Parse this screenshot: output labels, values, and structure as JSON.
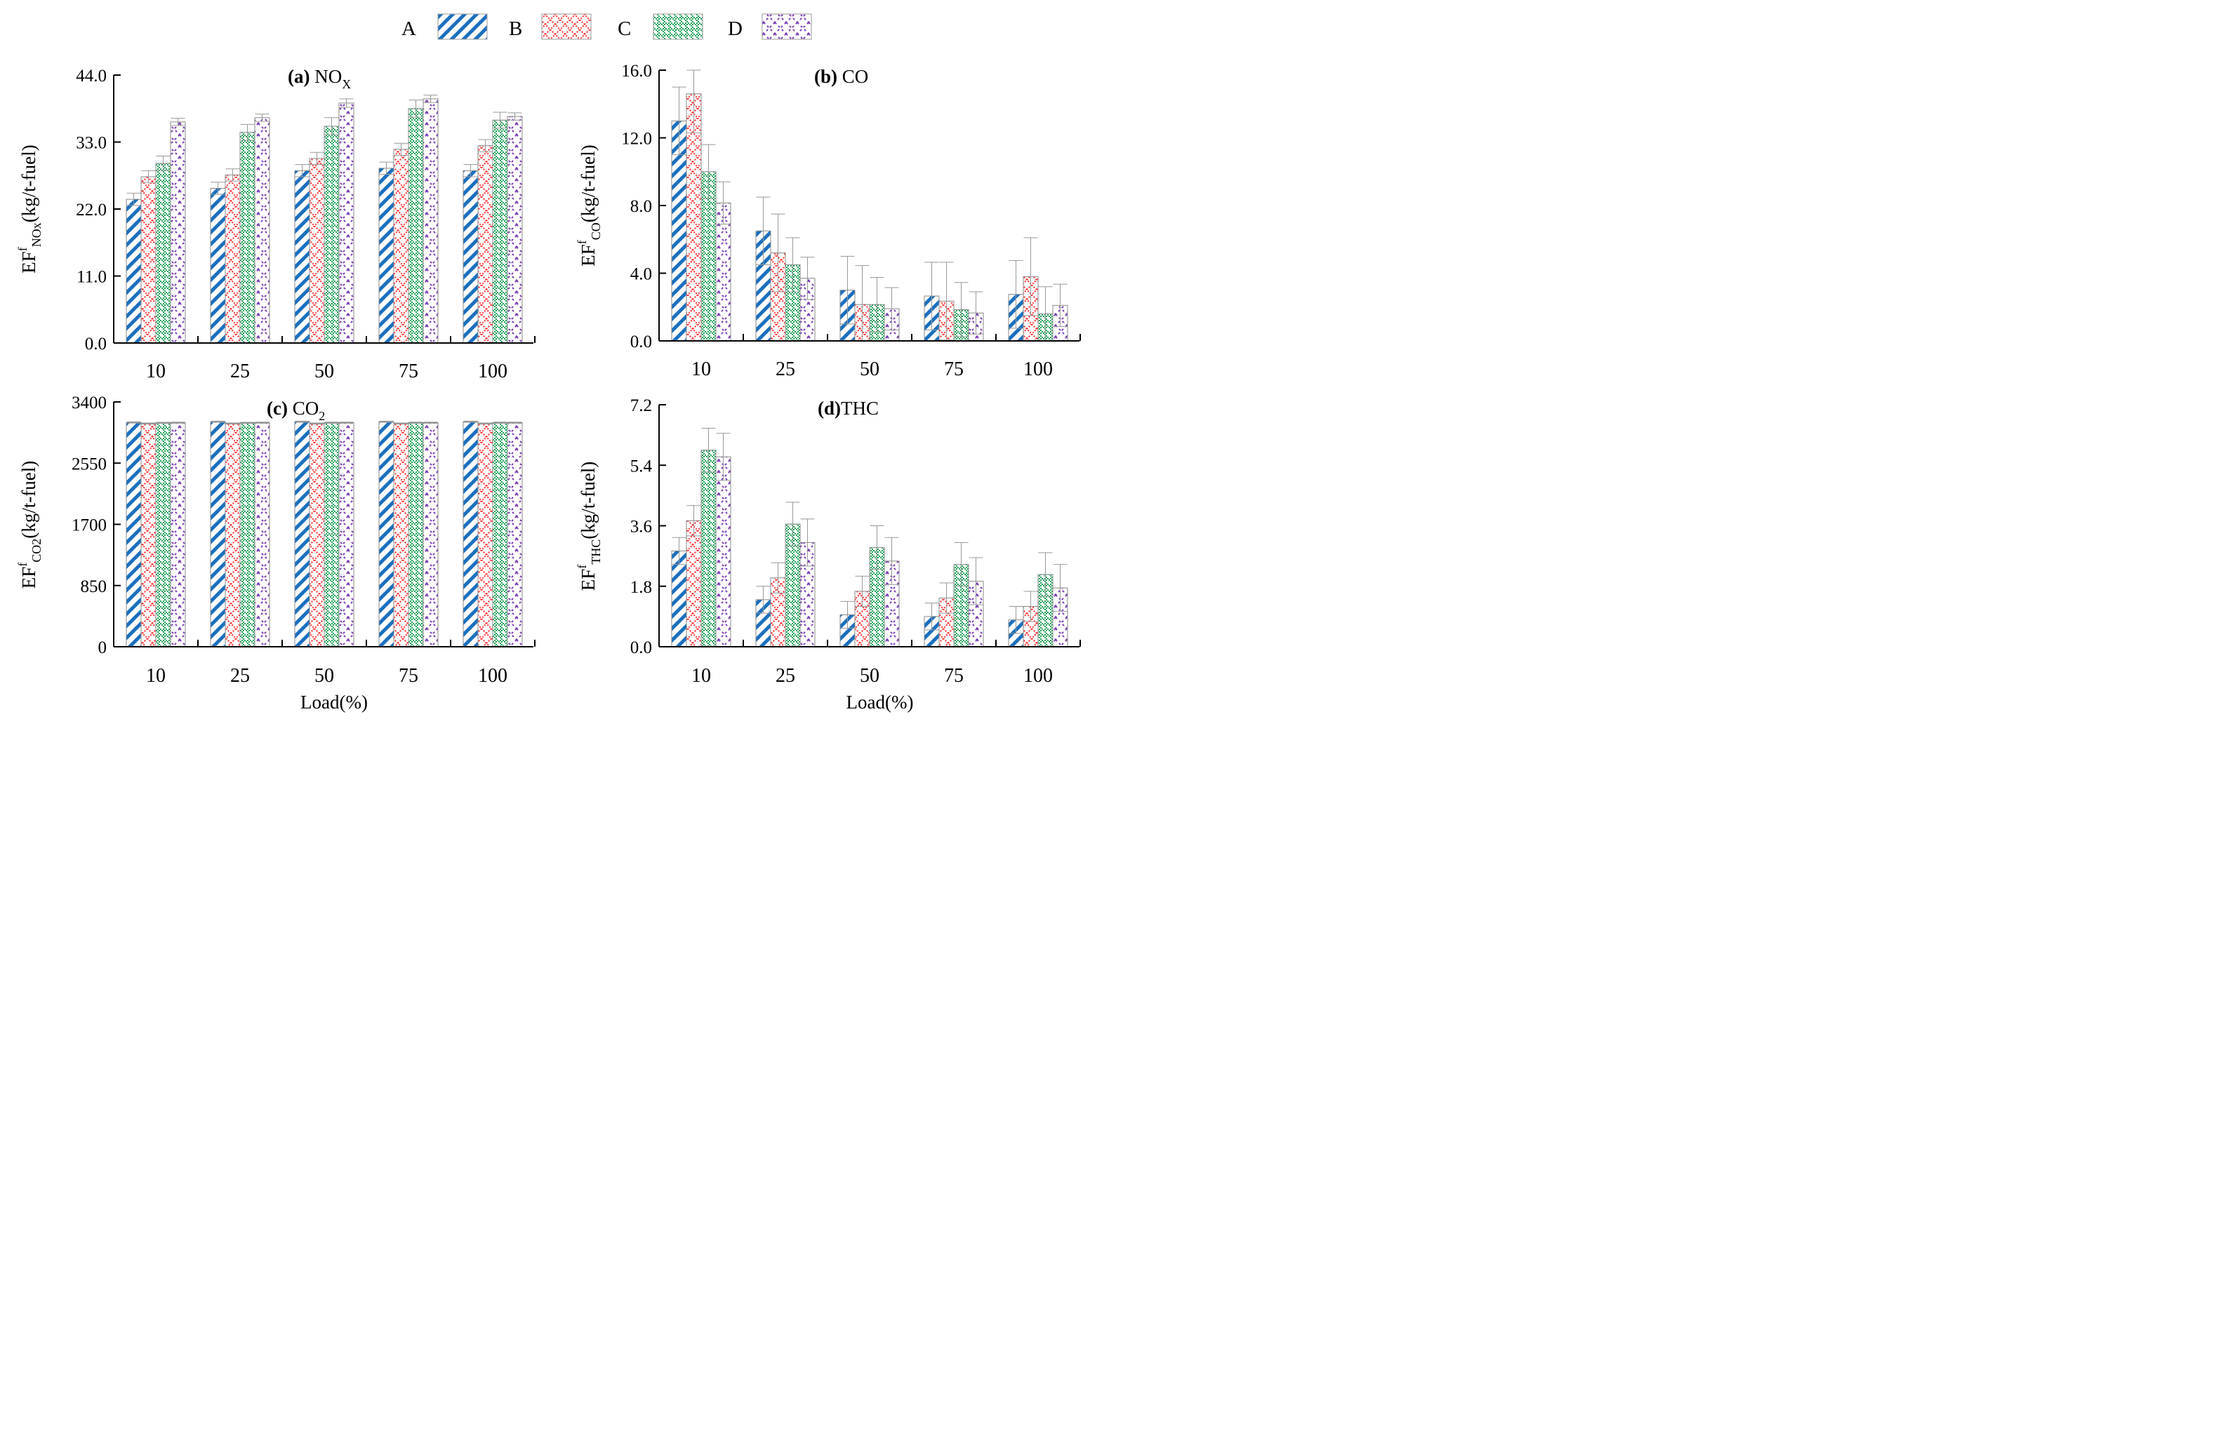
{
  "legend": [
    {
      "label": "A",
      "color": "#1a6fbf",
      "pattern": "diagonal-stripes"
    },
    {
      "label": "B",
      "color": "#ff2a2a",
      "pattern": "crosshatch"
    },
    {
      "label": "C",
      "color": "#22a35a",
      "pattern": "dotted-checker"
    },
    {
      "label": "D",
      "color": "#7a3bb5",
      "pattern": "zigzag-hatch"
    }
  ],
  "chart_data": [
    {
      "id": "a",
      "type": "bar",
      "title_bold": "(a)",
      "title_main": " NO",
      "title_sub": "X",
      "ylabel_main": "EF",
      "ylabel_sup": "f",
      "ylabel_sub": "NOx",
      "ylabel_tail": "(kg/t-fuel)",
      "xlabel": "",
      "categories": [
        "10",
        "25",
        "50",
        "75",
        "100"
      ],
      "ylim": [
        0,
        44
      ],
      "yticks": [
        "0.0",
        "11.0",
        "22.0",
        "33.0",
        "44.0"
      ],
      "series": [
        {
          "name": "A",
          "values": [
            23.6,
            25.4,
            28.3,
            28.7,
            28.3
          ],
          "errors": [
            1.0,
            1.0,
            1.0,
            1.0,
            1.0
          ]
        },
        {
          "name": "B",
          "values": [
            27.3,
            27.6,
            30.3,
            31.8,
            32.4
          ],
          "errors": [
            1.0,
            1.0,
            1.0,
            1.0,
            1.0
          ]
        },
        {
          "name": "C",
          "values": [
            29.5,
            34.6,
            35.6,
            38.5,
            36.6
          ],
          "errors": [
            1.2,
            1.3,
            1.4,
            1.4,
            1.3
          ]
        },
        {
          "name": "D",
          "values": [
            36.3,
            37.0,
            39.4,
            40.1,
            37.2
          ],
          "errors": [
            0.6,
            0.6,
            0.7,
            0.6,
            0.6
          ]
        }
      ]
    },
    {
      "id": "b",
      "type": "bar",
      "title_bold": "(b)",
      "title_main": " CO",
      "title_sub": "",
      "ylabel_main": "EF",
      "ylabel_sup": "f",
      "ylabel_sub": "CO",
      "ylabel_tail": "(kg/t-fuel)",
      "xlabel": "",
      "categories": [
        "10",
        "25",
        "50",
        "75",
        "100"
      ],
      "ylim": [
        0,
        16
      ],
      "yticks": [
        "0.0",
        "4.0",
        "8.0",
        "12.0",
        "16.0"
      ],
      "series": [
        {
          "name": "A",
          "values": [
            13.0,
            6.5,
            3.0,
            2.65,
            2.75
          ],
          "errors": [
            2.0,
            2.0,
            2.0,
            2.0,
            2.0
          ]
        },
        {
          "name": "B",
          "values": [
            14.6,
            5.2,
            2.15,
            2.35,
            3.8
          ],
          "errors": [
            2.3,
            2.3,
            2.3,
            2.3,
            2.3
          ]
        },
        {
          "name": "C",
          "values": [
            10.0,
            4.5,
            2.15,
            1.85,
            1.6
          ],
          "errors": [
            1.6,
            1.6,
            1.6,
            1.6,
            1.6
          ]
        },
        {
          "name": "D",
          "values": [
            8.15,
            3.7,
            1.9,
            1.65,
            2.1
          ],
          "errors": [
            1.25,
            1.25,
            1.25,
            1.25,
            1.25
          ]
        }
      ]
    },
    {
      "id": "c",
      "type": "bar",
      "title_bold": "(c)",
      "title_main": " CO",
      "title_sub": "2",
      "ylabel_main": "EF",
      "ylabel_sup": "f",
      "ylabel_sub": "CO2",
      "ylabel_tail": "(kg/t-fuel)",
      "xlabel": "Load(%)",
      "categories": [
        "10",
        "25",
        "50",
        "75",
        "100"
      ],
      "ylim": [
        0,
        3400
      ],
      "yticks": [
        "0",
        "850",
        "1700",
        "2550",
        "3400"
      ],
      "series": [
        {
          "name": "A",
          "values": [
            3115,
            3125,
            3125,
            3125,
            3125
          ],
          "errors": [
            8,
            8,
            8,
            8,
            8
          ]
        },
        {
          "name": "B",
          "values": [
            3100,
            3100,
            3100,
            3100,
            3100
          ],
          "errors": [
            8,
            8,
            8,
            8,
            8
          ]
        },
        {
          "name": "C",
          "values": [
            3110,
            3110,
            3112,
            3112,
            3112
          ],
          "errors": [
            8,
            8,
            8,
            8,
            8
          ]
        },
        {
          "name": "D",
          "values": [
            3112,
            3112,
            3112,
            3112,
            3112
          ],
          "errors": [
            8,
            8,
            8,
            8,
            8
          ]
        }
      ]
    },
    {
      "id": "d",
      "type": "bar",
      "title_bold": "(d)",
      "title_main": "THC",
      "title_sub": "",
      "ylabel_main": "EF",
      "ylabel_sup": "f",
      "ylabel_sub": "THC",
      "ylabel_tail": "(kg/t-fuel)",
      "xlabel": "Load(%)",
      "categories": [
        "10",
        "25",
        "50",
        "75",
        "100"
      ],
      "ylim": [
        0,
        7.2
      ],
      "yticks": [
        "0.0",
        "1.8",
        "3.6",
        "5.4",
        "7.2"
      ],
      "series": [
        {
          "name": "A",
          "values": [
            2.85,
            1.4,
            0.95,
            0.9,
            0.8
          ],
          "errors": [
            0.4,
            0.4,
            0.4,
            0.4,
            0.4
          ]
        },
        {
          "name": "B",
          "values": [
            3.75,
            2.05,
            1.65,
            1.45,
            1.2
          ],
          "errors": [
            0.45,
            0.45,
            0.45,
            0.45,
            0.45
          ]
        },
        {
          "name": "C",
          "values": [
            5.85,
            3.65,
            2.95,
            2.45,
            2.15
          ],
          "errors": [
            0.65,
            0.65,
            0.65,
            0.65,
            0.65
          ]
        },
        {
          "name": "D",
          "values": [
            5.65,
            3.1,
            2.55,
            1.95,
            1.75
          ],
          "errors": [
            0.7,
            0.7,
            0.7,
            0.7,
            0.7
          ]
        }
      ]
    }
  ]
}
